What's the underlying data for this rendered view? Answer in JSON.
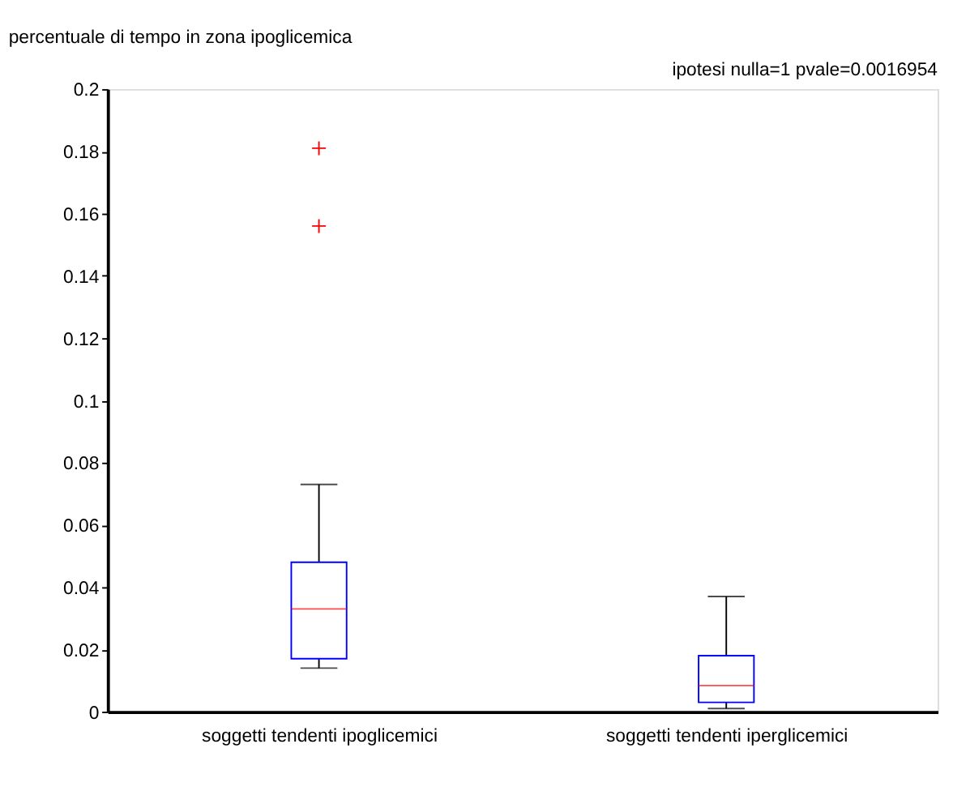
{
  "chart_data": {
    "type": "box",
    "title": "percentuale di tempo in zona ipoglicemica",
    "annotations": [
      "ipotesi nulla=1 pvale=0.0016954"
    ],
    "categories": [
      "soggetti tendenti ipoglicemici",
      "soggetti tendenti iperglicemici"
    ],
    "boxes": [
      {
        "low": 0.014,
        "q1": 0.017,
        "median": 0.033,
        "q3": 0.048,
        "high": 0.073,
        "outliers": [
          0.156,
          0.181
        ]
      },
      {
        "low": 0.001,
        "q1": 0.003,
        "median": 0.0084,
        "q3": 0.018,
        "high": 0.037
      }
    ],
    "color": "#0000ff",
    "marker": "cross",
    "ylim": [
      0,
      0.2
    ],
    "yticks": [
      0,
      0.02,
      0.04,
      0.06,
      0.08,
      0.1,
      0.12,
      0.14,
      0.16,
      0.18,
      0.2
    ],
    "grid": false
  }
}
